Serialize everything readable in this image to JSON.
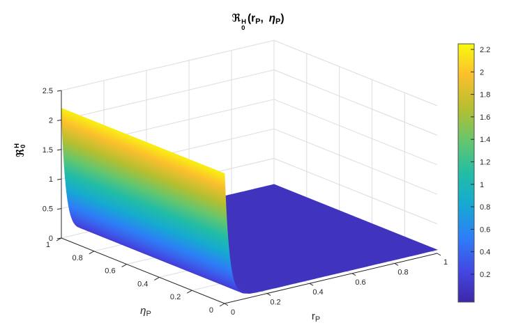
{
  "title": {
    "frak": "ℜ",
    "sup": "H",
    "sub": "0",
    "open": "(r",
    "r_sub": "P",
    "comma": ", ",
    "eta": "η",
    "eta_sub": "P",
    "close": ")"
  },
  "z_axis": {
    "frak": "ℜ",
    "sup": "H",
    "sub": "0",
    "tick_labels": [
      "0",
      "0.5",
      "1",
      "1.5",
      "2",
      "2.5"
    ],
    "tick_values": [
      0,
      0.5,
      1,
      1.5,
      2,
      2.5
    ],
    "lim": [
      0,
      2.5
    ]
  },
  "x_axis": {
    "label": "r",
    "label_sub": "P",
    "tick_labels": [
      "0",
      "0.2",
      "0.4",
      "0.6",
      "0.8",
      "1"
    ],
    "tick_values": [
      0,
      0.2,
      0.4,
      0.6,
      0.8,
      1
    ],
    "lim": [
      0,
      1
    ]
  },
  "y_axis": {
    "label": "η",
    "label_sub": "P",
    "tick_labels": [
      "0",
      "0.2",
      "0.4",
      "0.6",
      "0.8",
      "1"
    ],
    "tick_values": [
      0,
      0.2,
      0.4,
      0.6,
      0.8,
      1
    ],
    "lim": [
      0,
      1
    ]
  },
  "colorbar": {
    "colormap": "parula",
    "tick_labels": [
      "0.2",
      "0.4",
      "0.6",
      "0.8",
      "1",
      "1.2",
      "1.4",
      "1.6",
      "1.8",
      "2",
      "2.2"
    ],
    "tick_values": [
      0.2,
      0.4,
      0.6,
      0.8,
      1,
      1.2,
      1.4,
      1.6,
      1.8,
      2,
      2.2
    ],
    "clim_est": [
      -0.05,
      2.25
    ],
    "stops": [
      [
        0,
        "#3e26a8"
      ],
      [
        0.12,
        "#4348e2"
      ],
      [
        0.25,
        "#2e7ef7"
      ],
      [
        0.38,
        "#16aad1"
      ],
      [
        0.5,
        "#23bda5"
      ],
      [
        0.62,
        "#63c66f"
      ],
      [
        0.75,
        "#b5bf30"
      ],
      [
        0.88,
        "#fcbf2d"
      ],
      [
        1,
        "#f8fa0d"
      ]
    ]
  },
  "colors": {
    "axis": "#262626",
    "grid": "#dcdcdc",
    "background": "#ffffff",
    "colorbar_border": "#4d4d4d"
  },
  "chart_data": {
    "type": "surface",
    "title_text": "R0_H(rP, etaP)",
    "x_name": "rP",
    "y_name": "etaP",
    "z_name": "R0_H",
    "x_range": [
      0,
      1
    ],
    "y_range": [
      0,
      1
    ],
    "z_range": [
      0,
      2.5
    ],
    "independent_of_y": true,
    "z_floor": 0.06,
    "z_amp": 2.14,
    "decay": 0.022,
    "z_peak": 2.2,
    "profile_model": "z(rP) = z_floor + z_amp*exp(-rP/decay), constant in etaP",
    "profile": {
      "r": [
        0,
        0.005,
        0.01,
        0.02,
        0.03,
        0.05,
        0.07,
        0.1,
        0.15,
        0.2,
        0.3,
        0.5,
        0.8,
        1
      ],
      "z": [
        2.2,
        1.77,
        1.42,
        0.92,
        0.61,
        0.28,
        0.15,
        0.08,
        0.06,
        0.06,
        0.06,
        0.06,
        0.06,
        0.06
      ]
    },
    "grid": true,
    "legend": "colorbar right"
  }
}
